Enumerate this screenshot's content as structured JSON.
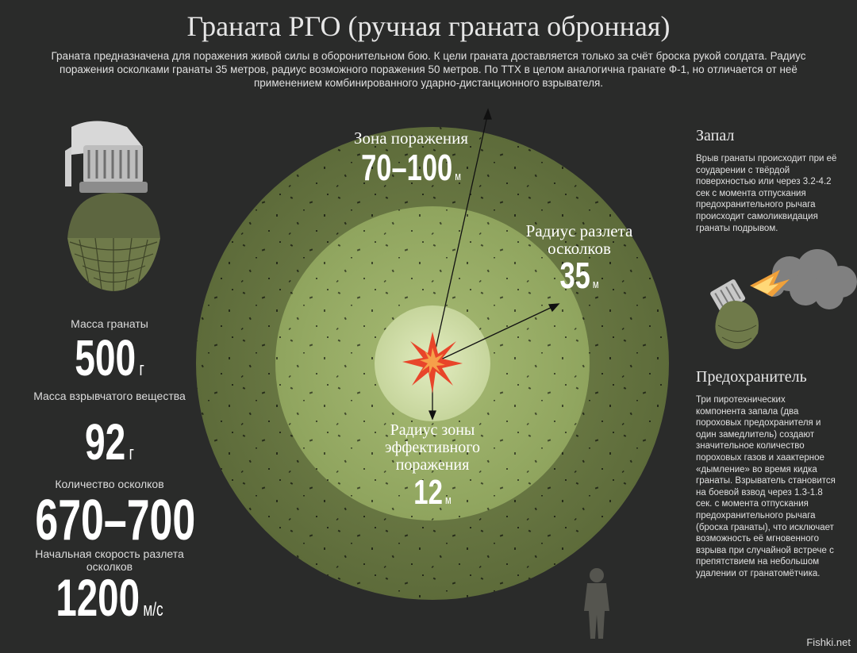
{
  "title": "Граната РГО (ручная граната обронная)",
  "intro": "Граната предназначена для поражения живой силы в оборонительном бою. К цели граната доставляется только за счёт броска рукой солдата. Радиус поражения осколками гранаты 35 метров, радиус возможного поражения 50 метров. По ТТХ в целом аналогична гранате Ф-1, но отличается от неё применением комбинированного ударно-дистанционного взрывателя.",
  "stats": {
    "mass": {
      "label": "Масса гранаты",
      "value": "500",
      "unit": "г"
    },
    "explosive": {
      "label": "Масса взрывчатого вещества",
      "value": "92",
      "unit": "г"
    },
    "fragments": {
      "label": "Количество осколков",
      "value": "670–700"
    },
    "speed": {
      "label": "Начальная скорость разлета осколков",
      "value": "1200",
      "unit": "м/с"
    }
  },
  "zones": {
    "outer": {
      "label": "Зона поражения",
      "value": "70–100",
      "unit": "м"
    },
    "middle": {
      "label": "Радиус разлета осколков",
      "value": "35",
      "unit": "м"
    },
    "inner": {
      "label": "Радиус зоны эффективного поражения",
      "value": "12",
      "unit": "м"
    }
  },
  "fuze": {
    "title": "Запал",
    "text": "Врыв гранаты происходит при её соударении с твёрдой поверхностью или через 3.2-4.2 сек с момента отпускания предохранительного рычага происходит самоликвидация гранаты подрывом."
  },
  "safety": {
    "title": "Предохранитель",
    "text": "Три пиротехнических компонента запала (два пороховых предохранителя и один замедлитель) создают значительное количество пороховых газов и хаактерное «дымление» во время кидка гранаты. Взрыватель становится на боевой взвод через 1.3-1.8 сек. с момента отпускания предохранительного рычага (броска гранаты), что исключает возможность её мгновенного взрыва при случайной встрече с препятствием на небольшом удалении от гранатомётчика."
  },
  "credit": "Fishki.net",
  "colors": {
    "outer_zone": "#6b7a44",
    "middle_zone": "#9aaf68",
    "inner_zone": "#cfdca8",
    "burst": "#e8452a",
    "background": "#2a2b2a"
  }
}
